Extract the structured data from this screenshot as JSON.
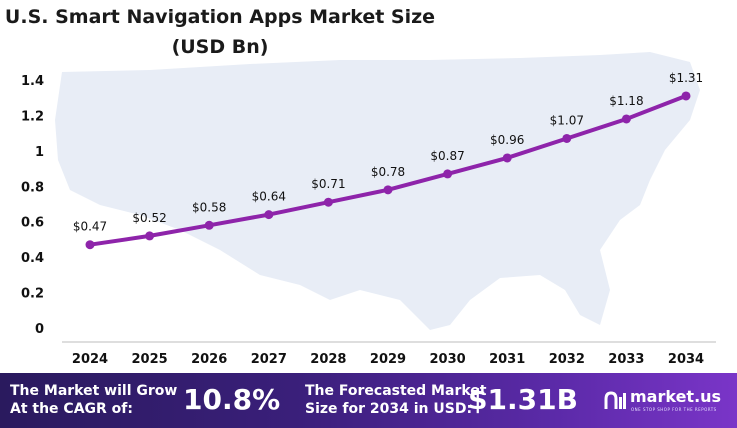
{
  "title_line1": "U.S. Smart Navigation Apps Market Size",
  "title_line2": "(USD Bn)",
  "chart_data": {
    "type": "line",
    "categories": [
      "2024",
      "2025",
      "2026",
      "2027",
      "2028",
      "2029",
      "2030",
      "2031",
      "2032",
      "2033",
      "2034"
    ],
    "values": [
      0.47,
      0.52,
      0.58,
      0.64,
      0.71,
      0.78,
      0.87,
      0.96,
      1.07,
      1.18,
      1.31
    ],
    "data_labels": [
      "$0.47",
      "$0.52",
      "$0.58",
      "$0.64",
      "$0.71",
      "$0.78",
      "$0.87",
      "$0.96",
      "$1.07",
      "$1.18",
      "$1.31"
    ],
    "ylim": [
      0,
      1.4
    ],
    "yticks": [
      0,
      0.2,
      0.4,
      0.6,
      0.8,
      1,
      1.2,
      1.4
    ],
    "ytick_labels": [
      "0",
      "0.2",
      "0.4",
      "0.6",
      "0.8",
      "1",
      "1.2",
      "1.4"
    ],
    "line_color": "#8e24aa",
    "grid": false
  },
  "banner": {
    "grow_line1": "The Market will Grow",
    "grow_line2": "At the CAGR of:",
    "cagr": "10.8%",
    "forecast_line1": "The Forecasted Market",
    "forecast_line2": "Size for 2034 in USD:",
    "forecast_value": "$1.31B",
    "logo_text": "market.us",
    "logo_tagline": "ONE STOP SHOP FOR THE REPORTS"
  },
  "colors": {
    "banner_start": "#2a1a5e",
    "banner_end": "#7a35c8",
    "map": "#e8edf6"
  }
}
